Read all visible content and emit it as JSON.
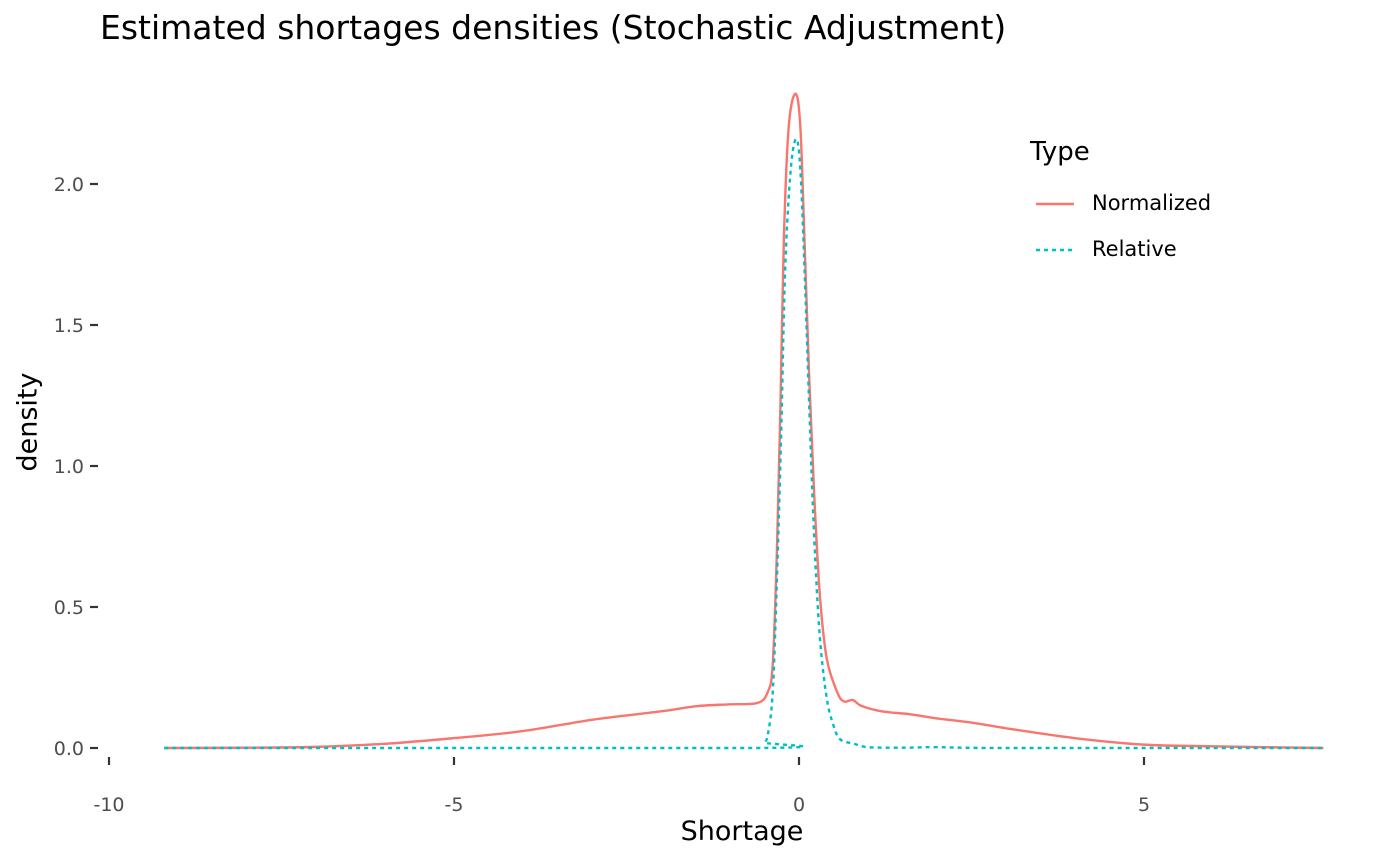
{
  "chart_data": {
    "type": "line",
    "title": "Estimated shortages densities (Stochastic Adjustment)",
    "xlabel": "Shortage",
    "ylabel": "density",
    "xlim": [
      -10,
      7.6
    ],
    "ylim": [
      0,
      2.32
    ],
    "x_ticks": [
      -10,
      -5,
      0,
      5
    ],
    "x_tick_labels": [
      "-10",
      "-5",
      "0",
      "5"
    ],
    "y_ticks": [
      0,
      0.5,
      1,
      1.5,
      2
    ],
    "y_tick_labels": [
      "0.0",
      "0.5",
      "1.0",
      "1.5",
      "2.0"
    ],
    "grid": false,
    "legend": {
      "title": "Type",
      "position": "top-right",
      "entries": [
        "Normalized",
        "Relative"
      ]
    },
    "series": [
      {
        "name": "Normalized",
        "color": "#F8766D",
        "dash": "solid",
        "points": [
          [
            -9.2,
            0.0
          ],
          [
            -8.0,
            0.001
          ],
          [
            -7.0,
            0.004
          ],
          [
            -6.0,
            0.015
          ],
          [
            -5.0,
            0.035
          ],
          [
            -4.0,
            0.06
          ],
          [
            -3.0,
            0.1
          ],
          [
            -2.0,
            0.13
          ],
          [
            -1.5,
            0.148
          ],
          [
            -1.0,
            0.155
          ],
          [
            -0.6,
            0.16
          ],
          [
            -0.45,
            0.2
          ],
          [
            -0.38,
            0.3
          ],
          [
            -0.32,
            0.7
          ],
          [
            -0.27,
            1.2
          ],
          [
            -0.22,
            1.8
          ],
          [
            -0.15,
            2.2
          ],
          [
            -0.05,
            2.32
          ],
          [
            0.02,
            2.2
          ],
          [
            0.08,
            1.8
          ],
          [
            0.15,
            1.3
          ],
          [
            0.22,
            0.9
          ],
          [
            0.3,
            0.55
          ],
          [
            0.4,
            0.32
          ],
          [
            0.55,
            0.2
          ],
          [
            0.65,
            0.165
          ],
          [
            0.78,
            0.17
          ],
          [
            0.9,
            0.15
          ],
          [
            1.2,
            0.13
          ],
          [
            1.6,
            0.12
          ],
          [
            2.0,
            0.105
          ],
          [
            2.5,
            0.09
          ],
          [
            3.0,
            0.07
          ],
          [
            4.0,
            0.035
          ],
          [
            5.0,
            0.012
          ],
          [
            6.0,
            0.006
          ],
          [
            7.0,
            0.002
          ],
          [
            7.6,
            0.0
          ]
        ]
      },
      {
        "name": "Relative",
        "color": "#00BFC4",
        "dash": "dotted",
        "points": [
          [
            -9.2,
            0.0
          ],
          [
            -0.6,
            0.0
          ],
          [
            -0.5,
            0.02
          ],
          [
            -0.45,
            0.05
          ],
          [
            -0.38,
            0.2
          ],
          [
            -0.32,
            0.6
          ],
          [
            -0.26,
            1.1
          ],
          [
            -0.2,
            1.7
          ],
          [
            -0.12,
            2.05
          ],
          [
            -0.04,
            2.16
          ],
          [
            0.02,
            2.05
          ],
          [
            0.08,
            1.7
          ],
          [
            0.15,
            1.2
          ],
          [
            0.22,
            0.75
          ],
          [
            0.3,
            0.4
          ],
          [
            0.4,
            0.18
          ],
          [
            0.5,
            0.08
          ],
          [
            0.6,
            0.03
          ],
          [
            0.8,
            0.015
          ],
          [
            1.0,
            0.003
          ],
          [
            1.5,
            0.001
          ],
          [
            2.0,
            0.003
          ],
          [
            3.0,
            0.0
          ],
          [
            7.6,
            0.0
          ]
        ]
      }
    ]
  }
}
